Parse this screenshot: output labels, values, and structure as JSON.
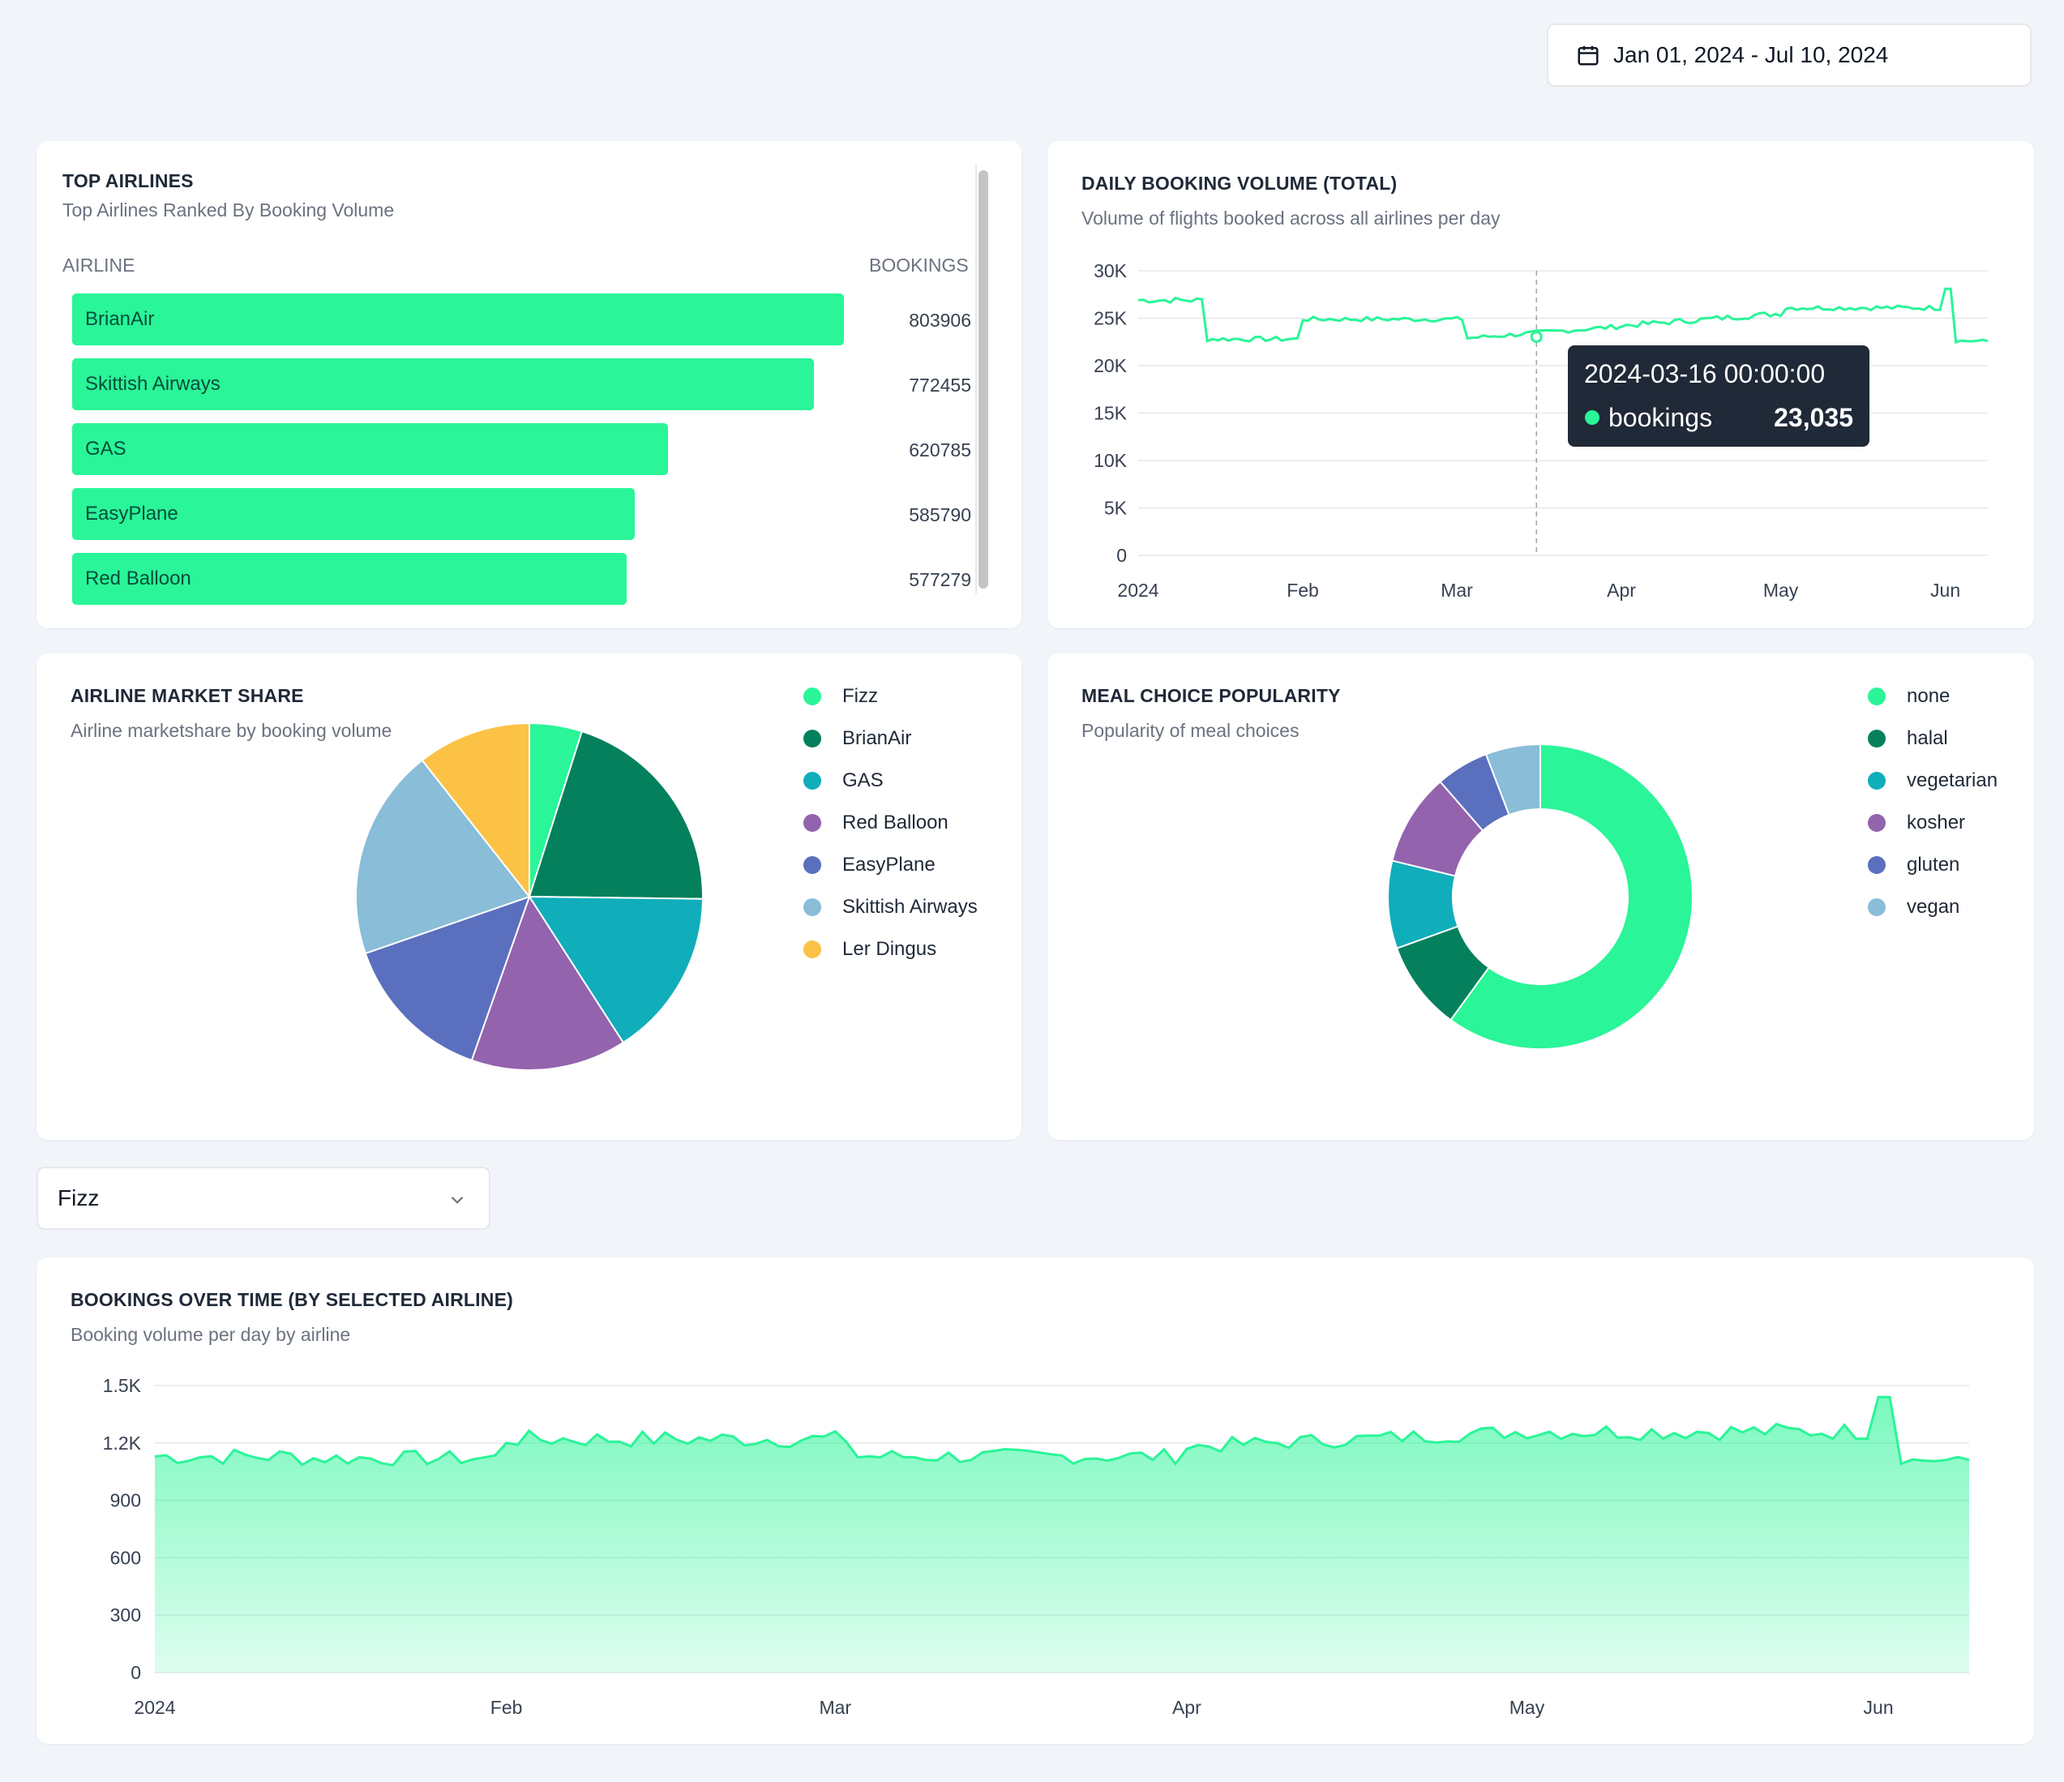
{
  "date_range": {
    "label": "Jan 01, 2024 - Jul 10, 2024",
    "icon": "calendar-icon"
  },
  "top_airlines": {
    "title": "TOP AIRLINES",
    "subtitle": "Top Airlines Ranked By Booking Volume",
    "col_airline": "AIRLINE",
    "col_bookings": "BOOKINGS",
    "bar_color": "#2af598",
    "rows": [
      {
        "name": "BrianAir",
        "value": "803906"
      },
      {
        "name": "Skittish Airways",
        "value": "772455"
      },
      {
        "name": "GAS",
        "value": "620785"
      },
      {
        "name": "EasyPlane",
        "value": "585790"
      },
      {
        "name": "Red Balloon",
        "value": "577279"
      }
    ]
  },
  "daily_volume": {
    "title": "DAILY BOOKING VOLUME (TOTAL)",
    "subtitle": "Volume of flights booked across all airlines per day",
    "tooltip": {
      "date": "2024-03-16 00:00:00",
      "series": "bookings",
      "value": "23,035"
    }
  },
  "market_share": {
    "title": "AIRLINE MARKET SHARE",
    "subtitle": "Airline marketshare by booking volume",
    "legend": [
      {
        "name": "Fizz",
        "color": "#2af598"
      },
      {
        "name": "BrianAir",
        "color": "#04805c"
      },
      {
        "name": "GAS",
        "color": "#10adbb"
      },
      {
        "name": "Red Balloon",
        "color": "#9363ae"
      },
      {
        "name": "EasyPlane",
        "color": "#5a6fbe"
      },
      {
        "name": "Skittish Airways",
        "color": "#89bdd8"
      },
      {
        "name": "Ler Dingus",
        "color": "#fcc245"
      }
    ]
  },
  "meal_choice": {
    "title": "MEAL CHOICE POPULARITY",
    "subtitle": "Popularity of meal choices",
    "legend": [
      {
        "name": "none",
        "color": "#2af598"
      },
      {
        "name": "halal",
        "color": "#04805c"
      },
      {
        "name": "vegetarian",
        "color": "#10adbb"
      },
      {
        "name": "kosher",
        "color": "#9363ae"
      },
      {
        "name": "gluten",
        "color": "#5a6fbe"
      },
      {
        "name": "vegan",
        "color": "#89bdd8"
      }
    ]
  },
  "airline_select": {
    "value": "Fizz"
  },
  "bookings_by_airline": {
    "title": "BOOKINGS OVER TIME (BY SELECTED AIRLINE)",
    "subtitle": "Booking volume per day by airline"
  },
  "chart_data": [
    {
      "type": "line",
      "title": "DAILY BOOKING VOLUME (TOTAL)",
      "ylim": [
        0,
        30000
      ],
      "yticks": [
        "0",
        "5K",
        "10K",
        "15K",
        "20K",
        "25K",
        "30K"
      ],
      "xticks": [
        "2024",
        "Feb",
        "Mar",
        "Apr",
        "May",
        "Jun"
      ],
      "series": [
        {
          "name": "bookings",
          "color": "#2af598",
          "segments": [
            {
              "start_day": 0,
              "end_day": 12,
              "base": 26900,
              "trend": 0,
              "noise": 300
            },
            {
              "start_day": 13,
              "end_day": 30,
              "base": 22800,
              "trend": 0,
              "noise": 250
            },
            {
              "start_day": 31,
              "end_day": 61,
              "base": 24900,
              "trend": 0,
              "noise": 250
            },
            {
              "start_day": 62,
              "end_day": 90,
              "base": 22900,
              "trend": 1200,
              "noise": 250
            },
            {
              "start_day": 91,
              "end_day": 121,
              "base": 24200,
              "trend": 1300,
              "noise": 300
            },
            {
              "start_day": 122,
              "end_day": 151,
              "base": 26100,
              "trend": 0,
              "noise": 250
            },
            {
              "start_day": 152,
              "end_day": 153,
              "base": 28100,
              "trend": 0,
              "noise": 0
            },
            {
              "start_day": 154,
              "end_day": 160,
              "base": 22600,
              "trend": 0,
              "noise": 150
            }
          ]
        }
      ],
      "highlight": {
        "date": "2024-03-16",
        "day": 75,
        "value": 23035
      }
    },
    {
      "type": "pie",
      "title": "AIRLINE MARKET SHARE",
      "labels": [
        "Fizz",
        "BrianAir",
        "GAS",
        "Red Balloon",
        "EasyPlane",
        "Skittish Airways",
        "Ler Dingus"
      ],
      "values": [
        4.9,
        20.3,
        15.7,
        14.5,
        14.3,
        19.7,
        10.6
      ]
    },
    {
      "type": "pie",
      "title": "MEAL CHOICE POPULARITY",
      "labels": [
        "none",
        "halal",
        "vegetarian",
        "kosher",
        "gluten",
        "vegan"
      ],
      "values": [
        60.0,
        9.5,
        9.3,
        9.8,
        5.6,
        5.8
      ]
    },
    {
      "type": "area",
      "title": "BOOKINGS OVER TIME (BY SELECTED AIRLINE)",
      "ylim": [
        0,
        1500
      ],
      "yticks": [
        "0",
        "300",
        "600",
        "900",
        "1.2K",
        "1.5K"
      ],
      "xticks": [
        "2024",
        "Feb",
        "Mar",
        "Apr",
        "May",
        "Jun"
      ],
      "series": [
        {
          "name": "Fizz",
          "color": "#2af598",
          "segments": [
            {
              "start_day": 0,
              "end_day": 12,
              "base": 1130,
              "trend": 0,
              "noise": 45
            },
            {
              "start_day": 13,
              "end_day": 30,
              "base": 1120,
              "trend": 0,
              "noise": 40
            },
            {
              "start_day": 31,
              "end_day": 61,
              "base": 1220,
              "trend": 0,
              "noise": 45
            },
            {
              "start_day": 62,
              "end_day": 90,
              "base": 1130,
              "trend": 0,
              "noise": 40
            },
            {
              "start_day": 91,
              "end_day": 121,
              "base": 1180,
              "trend": 80,
              "noise": 40
            },
            {
              "start_day": 122,
              "end_day": 151,
              "base": 1260,
              "trend": 0,
              "noise": 45
            },
            {
              "start_day": 152,
              "end_day": 153,
              "base": 1440,
              "trend": 0,
              "noise": 0
            },
            {
              "start_day": 154,
              "end_day": 160,
              "base": 1110,
              "trend": 0,
              "noise": 20
            }
          ]
        }
      ]
    }
  ]
}
